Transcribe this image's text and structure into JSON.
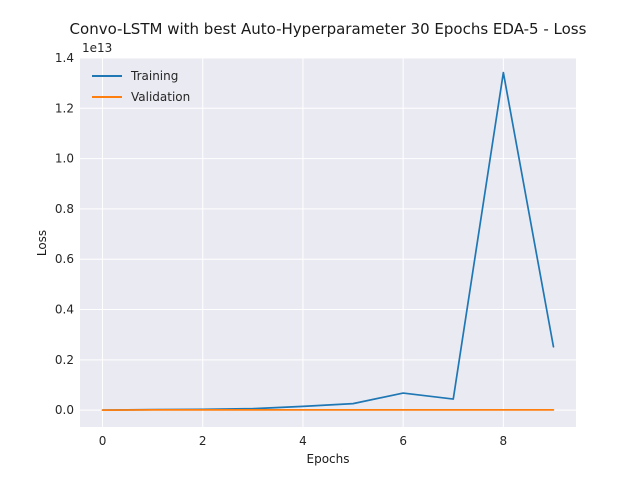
{
  "chart_data": {
    "type": "line",
    "title": "Convo-LSTM with best Auto-Hyperparameter 30 Epochs EDA-5 - Loss",
    "xlabel": "Epochs",
    "ylabel": "Loss",
    "y_offset_label": "1e13",
    "x": [
      0,
      1,
      2,
      3,
      4,
      5,
      6,
      7,
      8,
      9
    ],
    "xlim": [
      -0.45,
      9.45
    ],
    "ylim": [
      -0.067,
      1.4
    ],
    "x_ticks": [
      0,
      2,
      4,
      6,
      8
    ],
    "y_ticks": [
      0.0,
      0.2,
      0.4,
      0.6,
      0.8,
      1.0,
      1.2,
      1.4
    ],
    "y_tick_labels": [
      "0.0",
      "0.2",
      "0.4",
      "0.6",
      "0.8",
      "1.0",
      "1.2",
      "1.4"
    ],
    "grid": true,
    "legend_position": "upper-left",
    "series": [
      {
        "name": "Training",
        "color": "#1f77b4",
        "values": [
          0.0,
          0.002,
          0.003,
          0.006,
          0.015,
          0.026,
          0.068,
          0.044,
          1.342,
          0.252
        ]
      },
      {
        "name": "Validation",
        "color": "#ff7f0e",
        "values": [
          0.0,
          0.001,
          0.001,
          0.001,
          0.001,
          0.001,
          0.001,
          0.001,
          0.001,
          0.001
        ]
      }
    ]
  }
}
